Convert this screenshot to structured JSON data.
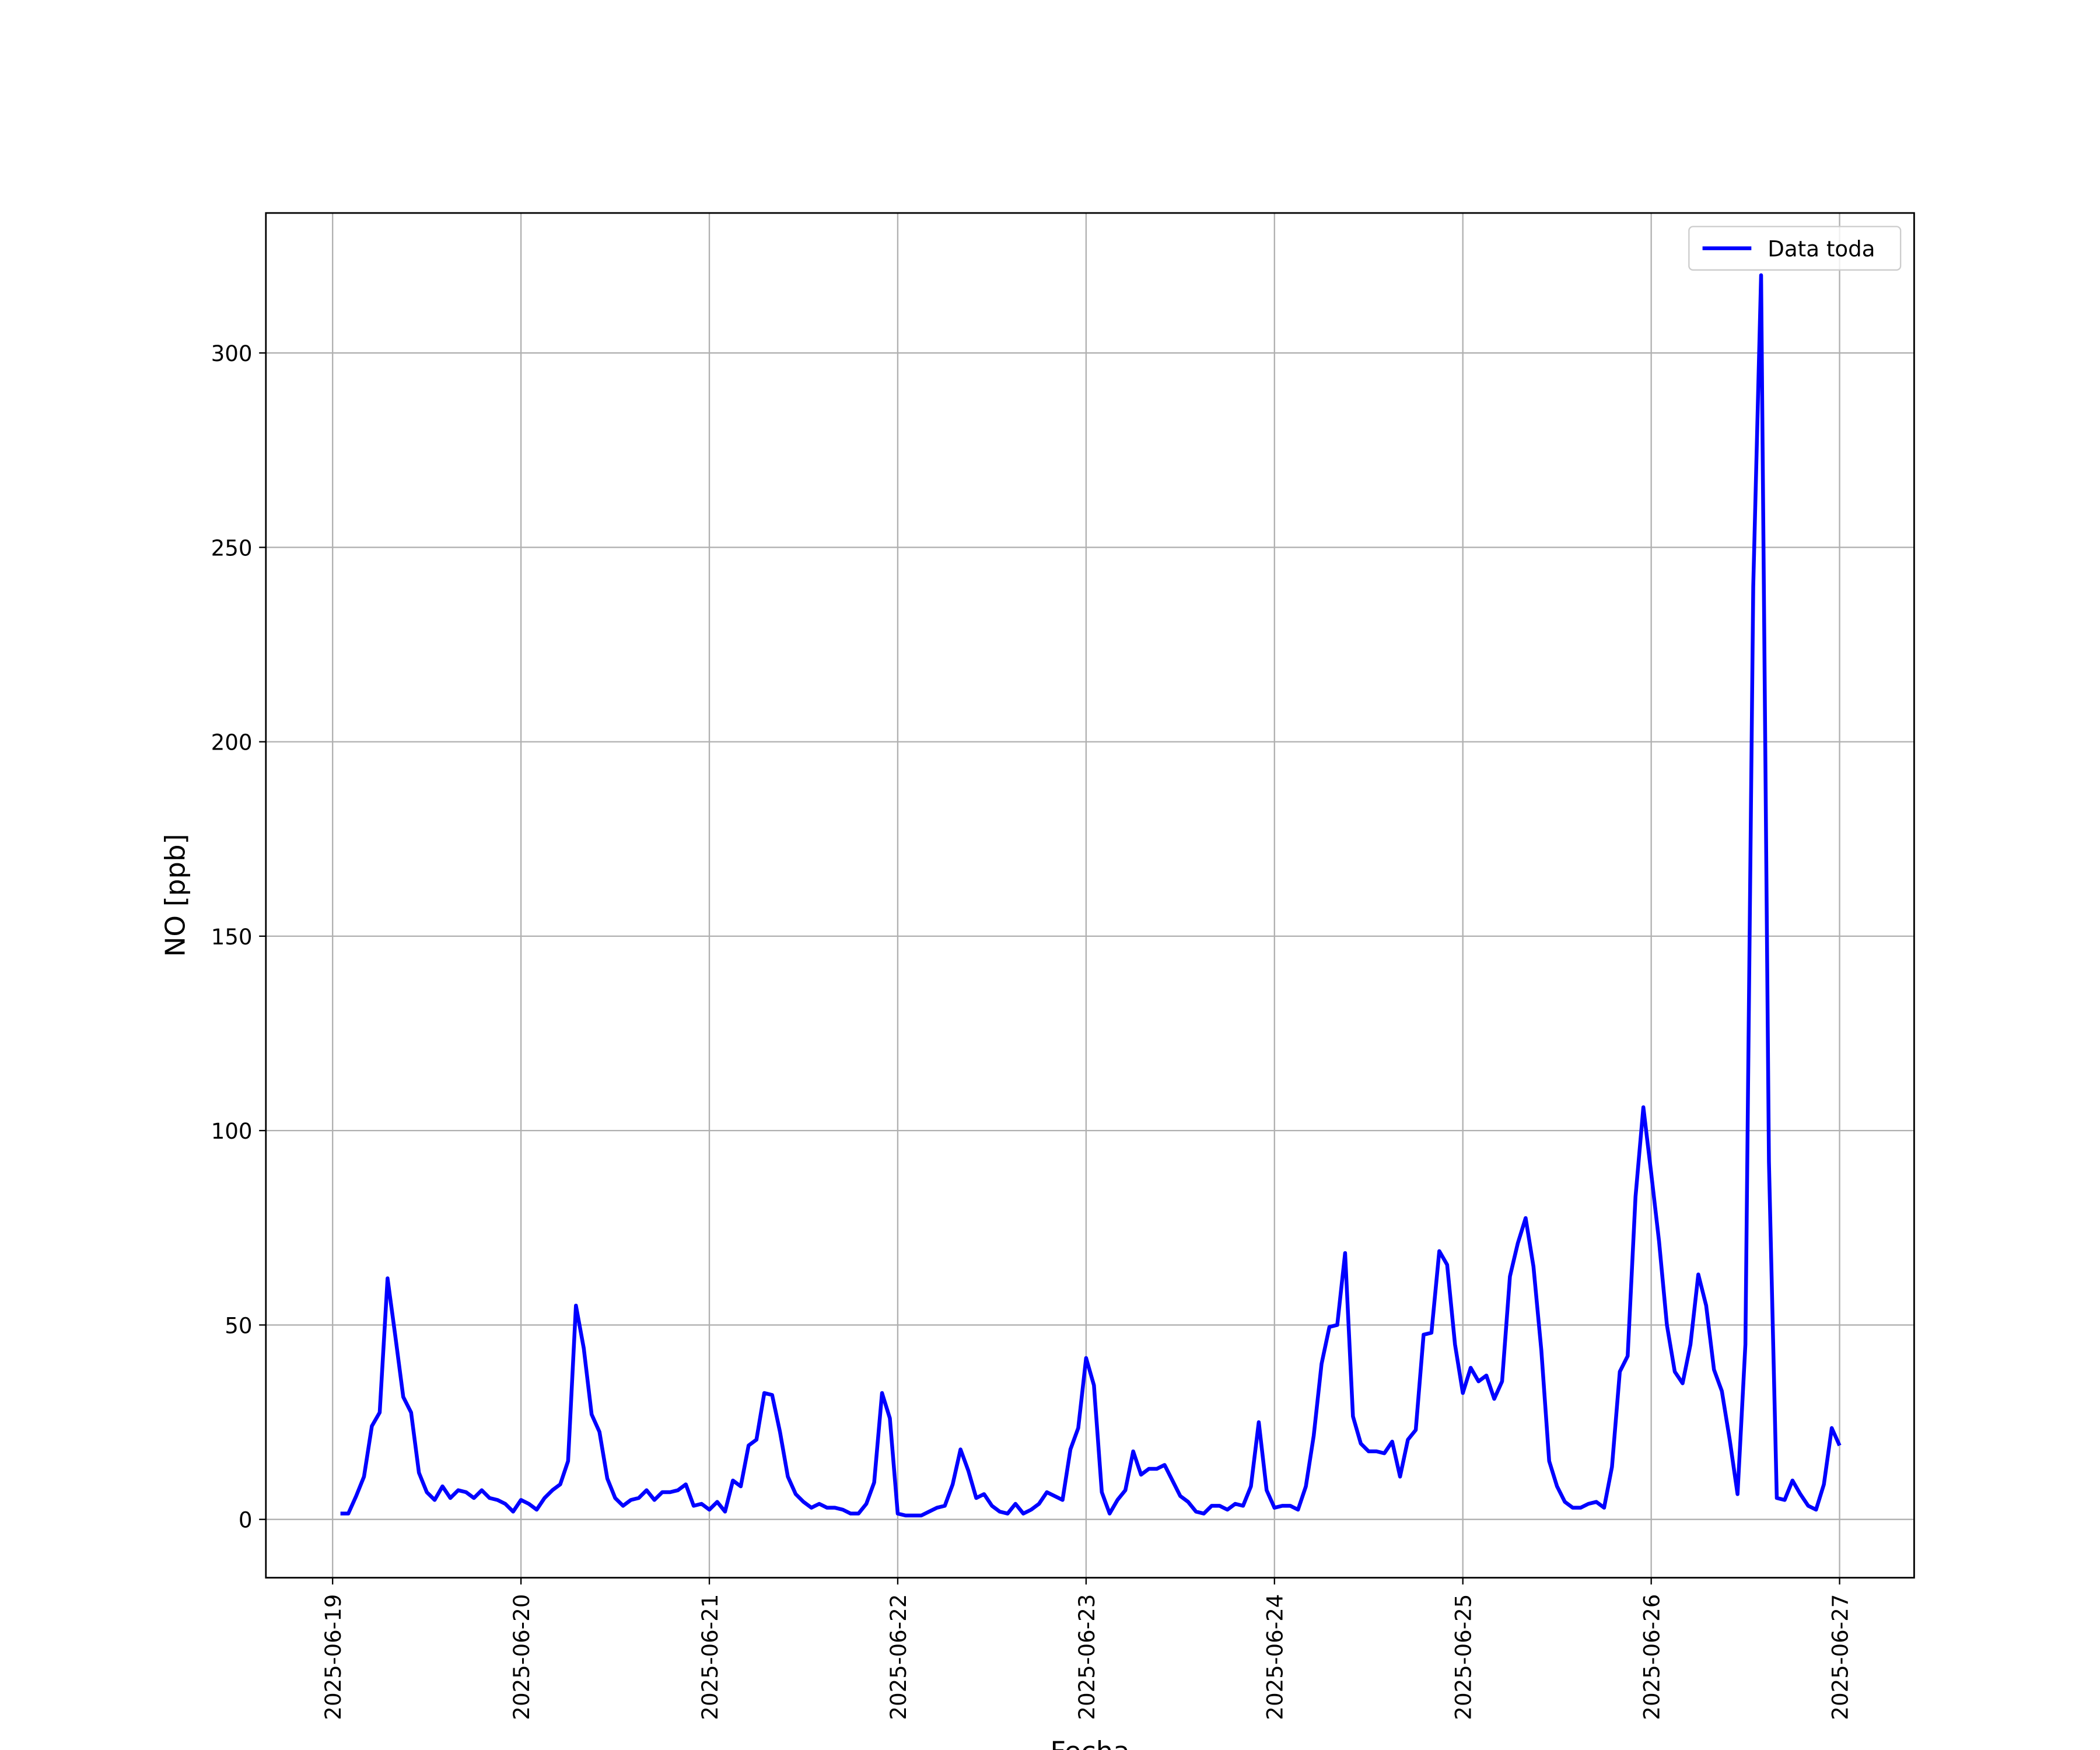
{
  "chart_data": {
    "type": "line",
    "xlabel": "Fecha",
    "ylabel": "NO [ppb]",
    "xlim": [
      "2025-06-18 15:30",
      "2025-06-27 09:30"
    ],
    "xticks": [
      "2025-06-19",
      "2025-06-20",
      "2025-06-21",
      "2025-06-22",
      "2025-06-23",
      "2025-06-24",
      "2025-06-25",
      "2025-06-26",
      "2025-06-27"
    ],
    "ylim": [
      -15,
      336
    ],
    "yticks": [
      0,
      50,
      100,
      150,
      200,
      250,
      300
    ],
    "grid": true,
    "legend": "upper right",
    "x": [
      "2025-06-19 01:00",
      "2025-06-19 02:00",
      "2025-06-19 03:00",
      "2025-06-19 04:00",
      "2025-06-19 05:00",
      "2025-06-19 06:00",
      "2025-06-19 07:00",
      "2025-06-19 08:00",
      "2025-06-19 09:00",
      "2025-06-19 10:00",
      "2025-06-19 11:00",
      "2025-06-19 12:00",
      "2025-06-19 13:00",
      "2025-06-19 14:00",
      "2025-06-19 15:00",
      "2025-06-19 16:00",
      "2025-06-19 17:00",
      "2025-06-19 18:00",
      "2025-06-19 19:00",
      "2025-06-19 20:00",
      "2025-06-19 21:00",
      "2025-06-19 22:00",
      "2025-06-19 23:00",
      "2025-06-20 00:00",
      "2025-06-20 01:00",
      "2025-06-20 02:00",
      "2025-06-20 03:00",
      "2025-06-20 04:00",
      "2025-06-20 05:00",
      "2025-06-20 06:00",
      "2025-06-20 07:00",
      "2025-06-20 08:00",
      "2025-06-20 09:00",
      "2025-06-20 10:00",
      "2025-06-20 11:00",
      "2025-06-20 12:00",
      "2025-06-20 13:00",
      "2025-06-20 14:00",
      "2025-06-20 15:00",
      "2025-06-20 16:00",
      "2025-06-20 17:00",
      "2025-06-20 18:00",
      "2025-06-20 19:00",
      "2025-06-20 20:00",
      "2025-06-20 21:00",
      "2025-06-20 22:00",
      "2025-06-20 23:00",
      "2025-06-21 00:00",
      "2025-06-21 01:00",
      "2025-06-21 02:00",
      "2025-06-21 03:00",
      "2025-06-21 04:00",
      "2025-06-21 05:00",
      "2025-06-21 06:00",
      "2025-06-21 07:00",
      "2025-06-21 08:00",
      "2025-06-21 09:00",
      "2025-06-21 10:00",
      "2025-06-21 11:00",
      "2025-06-21 12:00",
      "2025-06-21 13:00",
      "2025-06-21 14:00",
      "2025-06-21 15:00",
      "2025-06-21 16:00",
      "2025-06-21 17:00",
      "2025-06-21 18:00",
      "2025-06-21 19:00",
      "2025-06-21 20:00",
      "2025-06-21 21:00",
      "2025-06-21 22:00",
      "2025-06-21 23:00",
      "2025-06-22 00:00",
      "2025-06-22 01:00",
      "2025-06-22 02:00",
      "2025-06-22 03:00",
      "2025-06-22 04:00",
      "2025-06-22 05:00",
      "2025-06-22 06:00",
      "2025-06-22 07:00",
      "2025-06-22 08:00",
      "2025-06-22 09:00",
      "2025-06-22 10:00",
      "2025-06-22 11:00",
      "2025-06-22 12:00",
      "2025-06-22 13:00",
      "2025-06-22 14:00",
      "2025-06-22 15:00",
      "2025-06-22 16:00",
      "2025-06-22 17:00",
      "2025-06-22 18:00",
      "2025-06-22 19:00",
      "2025-06-22 20:00",
      "2025-06-22 21:00",
      "2025-06-22 22:00",
      "2025-06-22 23:00",
      "2025-06-23 00:00",
      "2025-06-23 01:00",
      "2025-06-23 02:00",
      "2025-06-23 03:00",
      "2025-06-23 04:00",
      "2025-06-23 05:00",
      "2025-06-23 06:00",
      "2025-06-23 07:00",
      "2025-06-23 08:00",
      "2025-06-23 09:00",
      "2025-06-23 10:00",
      "2025-06-23 11:00",
      "2025-06-23 12:00",
      "2025-06-23 13:00",
      "2025-06-23 14:00",
      "2025-06-23 15:00",
      "2025-06-23 16:00",
      "2025-06-23 17:00",
      "2025-06-23 18:00",
      "2025-06-23 19:00",
      "2025-06-23 20:00",
      "2025-06-23 21:00",
      "2025-06-23 22:00",
      "2025-06-23 23:00",
      "2025-06-24 00:00",
      "2025-06-24 01:00",
      "2025-06-24 02:00",
      "2025-06-24 03:00",
      "2025-06-24 04:00",
      "2025-06-24 05:00",
      "2025-06-24 06:00",
      "2025-06-24 07:00",
      "2025-06-24 08:00",
      "2025-06-24 09:00",
      "2025-06-24 10:00",
      "2025-06-24 11:00",
      "2025-06-24 12:00",
      "2025-06-24 13:00",
      "2025-06-24 14:00",
      "2025-06-24 15:00",
      "2025-06-24 16:00",
      "2025-06-24 17:00",
      "2025-06-24 18:00",
      "2025-06-24 19:00",
      "2025-06-24 20:00",
      "2025-06-24 21:00",
      "2025-06-24 22:00",
      "2025-06-24 23:00",
      "2025-06-25 00:00",
      "2025-06-25 01:00",
      "2025-06-25 02:00",
      "2025-06-25 03:00",
      "2025-06-25 04:00",
      "2025-06-25 05:00",
      "2025-06-25 06:00",
      "2025-06-25 07:00",
      "2025-06-25 08:00",
      "2025-06-25 09:00",
      "2025-06-25 10:00",
      "2025-06-25 11:00",
      "2025-06-25 12:00",
      "2025-06-25 13:00",
      "2025-06-25 14:00",
      "2025-06-25 15:00",
      "2025-06-25 16:00",
      "2025-06-25 17:00",
      "2025-06-25 18:00",
      "2025-06-25 19:00",
      "2025-06-25 20:00",
      "2025-06-25 21:00",
      "2025-06-25 22:00",
      "2025-06-25 23:00",
      "2025-06-26 00:00",
      "2025-06-26 01:00",
      "2025-06-26 02:00",
      "2025-06-26 03:00",
      "2025-06-26 04:00",
      "2025-06-26 05:00",
      "2025-06-26 06:00",
      "2025-06-26 07:00",
      "2025-06-26 08:00",
      "2025-06-26 09:00",
      "2025-06-26 10:00",
      "2025-06-26 11:00",
      "2025-06-26 12:00",
      "2025-06-26 13:00",
      "2025-06-26 14:00",
      "2025-06-26 15:00",
      "2025-06-26 16:00",
      "2025-06-26 17:00",
      "2025-06-26 18:00",
      "2025-06-26 19:00",
      "2025-06-26 20:00",
      "2025-06-26 21:00",
      "2025-06-26 22:00",
      "2025-06-26 23:00",
      "2025-06-27 00:00"
    ],
    "series": [
      {
        "name": "Data toda",
        "color": "#0000ff",
        "values": [
          1.5,
          1.5,
          6,
          11,
          24,
          27.5,
          62,
          47,
          31.5,
          27.5,
          12,
          7,
          5,
          8.5,
          5.5,
          7.5,
          7,
          5.5,
          7.5,
          5.5,
          5,
          4,
          2,
          5,
          4,
          2.5,
          5.5,
          7.5,
          9,
          15,
          55,
          44,
          27,
          22.5,
          10.5,
          5.5,
          3.5,
          5,
          5.5,
          7.5,
          5,
          7,
          7,
          7.5,
          9,
          3.5,
          4,
          2.5,
          4.5,
          2,
          10,
          8.5,
          19,
          20.5,
          32.5,
          32,
          22.5,
          11,
          6.5,
          4.5,
          3,
          4,
          3,
          3,
          2.5,
          1.5,
          1.5,
          4,
          9.5,
          32.5,
          26,
          1.5,
          1,
          1,
          1,
          2,
          3,
          3.5,
          9,
          18,
          12.5,
          5.5,
          6.5,
          3.5,
          2,
          1.5,
          4,
          1.5,
          2.5,
          4,
          7,
          6,
          5,
          18,
          23.5,
          41.5,
          34.5,
          7,
          1.5,
          5,
          7.5,
          17.5,
          11.5,
          13,
          13,
          14,
          10,
          6,
          4.5,
          2,
          1.5,
          3.5,
          3.5,
          2.5,
          4,
          3.5,
          8.5,
          25,
          7.5,
          3,
          3.5,
          3.5,
          2.5,
          8.5,
          21.5,
          40,
          49.5,
          50,
          68.5,
          26.5,
          19.5,
          17.5,
          17.5,
          17,
          20,
          11,
          20.5,
          23,
          47.5,
          48,
          69,
          65.5,
          45,
          32.5,
          39,
          35.5,
          37,
          31,
          35.5,
          62.5,
          71,
          77.5,
          65,
          43.5,
          15,
          8.5,
          4.5,
          3,
          3,
          4,
          4.5,
          3,
          13.5,
          38,
          42,
          83,
          106,
          89,
          71.5,
          50,
          38,
          35,
          45,
          63,
          55,
          38.5,
          33,
          20.5,
          6.5,
          45,
          240,
          320,
          92,
          5.5,
          5,
          10,
          6.5,
          3.5,
          2.5,
          9,
          23.5,
          19
        ]
      }
    ]
  }
}
